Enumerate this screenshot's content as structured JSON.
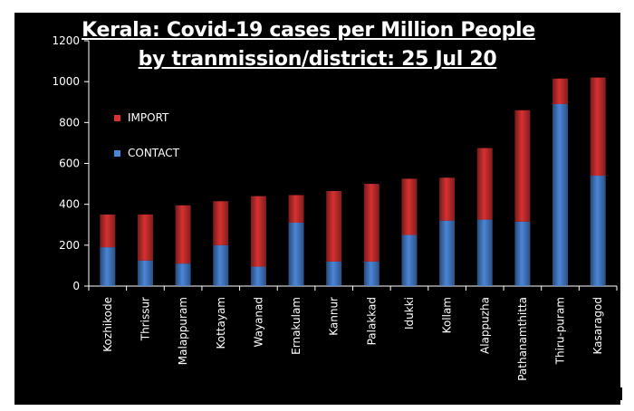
{
  "chart_data": {
    "type": "bar",
    "stacked": true,
    "title_lines": [
      "Kerala: Covid-19 cases per Million People",
      "by tranmission/district: 25 Jul 20"
    ],
    "categories": [
      "Kozhikode",
      "Thrissur",
      "Malappuram",
      "Kottayam",
      "Wayanad",
      "Ernakulam",
      "Kannur",
      "Palakkad",
      "Idukki",
      "Kollam",
      "Alappuzha",
      "Pathanamthitta",
      "Thiru-puram",
      "Kasaragod"
    ],
    "series": [
      {
        "name": "CONTACT",
        "color": "#4a86d8",
        "values": [
          190,
          125,
          110,
          200,
          95,
          310,
          120,
          120,
          250,
          320,
          325,
          315,
          890,
          540
        ]
      },
      {
        "name": "IMPORT",
        "color": "#d73131",
        "values": [
          160,
          225,
          285,
          215,
          345,
          135,
          345,
          380,
          275,
          210,
          350,
          545,
          125,
          480
        ]
      }
    ],
    "yticks": [
      "0",
      "200",
      "400",
      "600",
      "800",
      "1000",
      "1200"
    ],
    "ylim": [
      0,
      1200
    ],
    "legend_position": "top-left",
    "grid": false,
    "background": "#000000"
  }
}
